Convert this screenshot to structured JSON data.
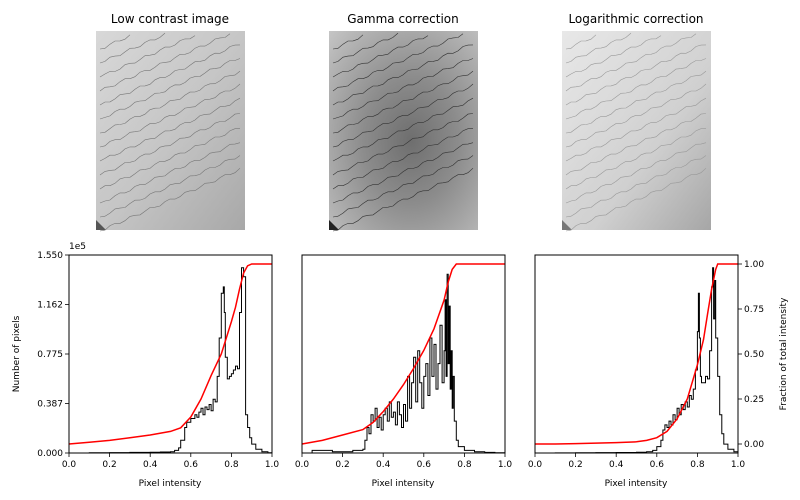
{
  "panels": [
    {
      "title": "Low contrast image",
      "xlabel": "Pixel intensity"
    },
    {
      "title": "Gamma correction",
      "xlabel": "Pixel intensity"
    },
    {
      "title": "Logarithmic correction",
      "xlabel": "Pixel intensity"
    }
  ],
  "chart_data": [
    {
      "type": "line",
      "title": "",
      "xlabel": "Pixel intensity",
      "ylabel": "Number of pixels",
      "y2label": "Fraction of total intensity",
      "y_offset_text": "1e5",
      "xlim": [
        0,
        1
      ],
      "ylim": [
        0,
        1.55
      ],
      "xticks": [
        "0.0",
        "0.2",
        "0.4",
        "0.6",
        "0.8",
        "1.0"
      ],
      "yticks": [
        "0.000",
        "0.387",
        "0.775",
        "1.162",
        "1.550"
      ],
      "series": [
        {
          "values_x": [
            0.0,
            0.05,
            0.1,
            0.2,
            0.3,
            0.4,
            0.45,
            0.5,
            0.52,
            0.54,
            0.55,
            0.57,
            0.58,
            0.6,
            0.62,
            0.63,
            0.64,
            0.65,
            0.66,
            0.67,
            0.68,
            0.69,
            0.7,
            0.71,
            0.72,
            0.73,
            0.74,
            0.75,
            0.76,
            0.765,
            0.77,
            0.78,
            0.79,
            0.8,
            0.81,
            0.82,
            0.83,
            0.84,
            0.85,
            0.86,
            0.87,
            0.88,
            0.89,
            0.9,
            0.92,
            0.95,
            0.98,
            1.0
          ],
          "values_y": [
            0,
            0,
            0.002,
            0.003,
            0.005,
            0.006,
            0.008,
            0.01,
            0.02,
            0.04,
            0.1,
            0.2,
            0.24,
            0.27,
            0.3,
            0.28,
            0.32,
            0.35,
            0.3,
            0.36,
            0.34,
            0.38,
            0.33,
            0.42,
            0.4,
            0.6,
            0.9,
            1.25,
            1.3,
            1.1,
            0.75,
            0.58,
            0.6,
            0.62,
            0.65,
            0.68,
            0.66,
            1.1,
            1.45,
            1.38,
            0.3,
            0.2,
            0.12,
            0.07,
            0.03,
            0.01,
            0.002,
            0
          ]
        },
        {
          "values_x": [
            0,
            0.1,
            0.2,
            0.3,
            0.4,
            0.5,
            0.55,
            0.6,
            0.65,
            0.7,
            0.75,
            0.8,
            0.82,
            0.84,
            0.86,
            0.88,
            0.9,
            1.0
          ],
          "values_y": [
            0,
            0.01,
            0.02,
            0.035,
            0.05,
            0.07,
            0.09,
            0.15,
            0.25,
            0.38,
            0.5,
            0.68,
            0.76,
            0.86,
            0.95,
            0.99,
            1.0,
            1.0
          ]
        }
      ]
    },
    {
      "type": "line",
      "xlabel": "Pixel intensity",
      "xlim": [
        0,
        1
      ],
      "ylim": [
        0,
        1.55
      ],
      "xticks": [
        "0.0",
        "0.2",
        "0.4",
        "0.6",
        "0.8",
        "1.0"
      ],
      "series": [
        {
          "values_x": [
            0.0,
            0.05,
            0.1,
            0.15,
            0.2,
            0.25,
            0.3,
            0.31,
            0.32,
            0.33,
            0.34,
            0.35,
            0.36,
            0.37,
            0.38,
            0.39,
            0.4,
            0.41,
            0.42,
            0.43,
            0.44,
            0.45,
            0.46,
            0.47,
            0.48,
            0.49,
            0.5,
            0.51,
            0.52,
            0.53,
            0.54,
            0.55,
            0.56,
            0.57,
            0.58,
            0.59,
            0.6,
            0.61,
            0.62,
            0.63,
            0.64,
            0.65,
            0.66,
            0.67,
            0.68,
            0.69,
            0.7,
            0.705,
            0.71,
            0.715,
            0.72,
            0.725,
            0.73,
            0.735,
            0.74,
            0.745,
            0.75,
            0.76,
            0.77,
            0.8,
            0.85,
            0.9,
            0.95,
            1.0
          ],
          "values_y": [
            0,
            0.02,
            0.02,
            0.01,
            0.01,
            0.02,
            0.03,
            0.1,
            0.2,
            0.15,
            0.3,
            0.25,
            0.35,
            0.2,
            0.28,
            0.18,
            0.3,
            0.35,
            0.25,
            0.4,
            0.28,
            0.32,
            0.22,
            0.4,
            0.3,
            0.2,
            0.38,
            0.25,
            0.6,
            0.35,
            0.55,
            0.75,
            0.4,
            0.8,
            0.55,
            0.35,
            0.6,
            0.7,
            0.45,
            0.9,
            0.6,
            0.85,
            0.5,
            0.7,
            1.0,
            0.55,
            0.8,
            1.2,
            0.6,
            1.4,
            0.7,
            1.15,
            0.5,
            0.8,
            0.35,
            0.6,
            0.25,
            0.1,
            0.05,
            0.02,
            0.01,
            0.005,
            0.002,
            0
          ]
        },
        {
          "values_x": [
            0,
            0.1,
            0.2,
            0.3,
            0.35,
            0.4,
            0.45,
            0.5,
            0.55,
            0.6,
            0.65,
            0.7,
            0.72,
            0.74,
            0.76,
            0.8,
            1.0
          ],
          "values_y": [
            0,
            0.02,
            0.05,
            0.08,
            0.12,
            0.18,
            0.25,
            0.33,
            0.42,
            0.52,
            0.64,
            0.8,
            0.9,
            0.97,
            1.0,
            1.0,
            1.0
          ]
        }
      ]
    },
    {
      "type": "line",
      "xlabel": "Pixel intensity",
      "y2label": "Fraction of total intensity",
      "xlim": [
        0,
        1
      ],
      "ylim": [
        0,
        1.55
      ],
      "y2lim": [
        -0.05,
        1.05
      ],
      "xticks": [
        "0.0",
        "0.2",
        "0.4",
        "0.6",
        "0.8",
        "1.0"
      ],
      "y2ticks": [
        "0.00",
        "0.25",
        "0.50",
        "0.75",
        "1.00"
      ],
      "series": [
        {
          "values_x": [
            0.0,
            0.1,
            0.2,
            0.3,
            0.4,
            0.5,
            0.55,
            0.58,
            0.6,
            0.62,
            0.63,
            0.64,
            0.65,
            0.66,
            0.67,
            0.68,
            0.69,
            0.7,
            0.71,
            0.72,
            0.73,
            0.74,
            0.75,
            0.76,
            0.77,
            0.78,
            0.79,
            0.8,
            0.805,
            0.81,
            0.815,
            0.82,
            0.83,
            0.84,
            0.85,
            0.86,
            0.87,
            0.875,
            0.88,
            0.885,
            0.89,
            0.9,
            0.91,
            0.92,
            0.93,
            0.95,
            0.98,
            1.0
          ],
          "values_y": [
            0,
            0.001,
            0.002,
            0.003,
            0.004,
            0.006,
            0.01,
            0.02,
            0.05,
            0.1,
            0.18,
            0.22,
            0.2,
            0.25,
            0.22,
            0.3,
            0.26,
            0.35,
            0.3,
            0.38,
            0.34,
            0.4,
            0.36,
            0.45,
            0.42,
            0.5,
            0.65,
            0.95,
            1.25,
            0.9,
            0.6,
            0.55,
            0.55,
            0.6,
            0.58,
            0.8,
            1.3,
            1.45,
            1.05,
            1.35,
            0.9,
            0.6,
            0.3,
            0.15,
            0.07,
            0.03,
            0.01,
            0
          ]
        },
        {
          "values_x": [
            0,
            0.1,
            0.2,
            0.3,
            0.4,
            0.5,
            0.55,
            0.6,
            0.65,
            0.7,
            0.75,
            0.8,
            0.83,
            0.85,
            0.87,
            0.89,
            0.9,
            0.92,
            1.0
          ],
          "values_y": [
            0,
            0,
            0.002,
            0.005,
            0.008,
            0.012,
            0.02,
            0.035,
            0.07,
            0.14,
            0.25,
            0.44,
            0.58,
            0.72,
            0.86,
            0.97,
            1.0,
            1.0,
            1.0
          ]
        }
      ]
    }
  ]
}
